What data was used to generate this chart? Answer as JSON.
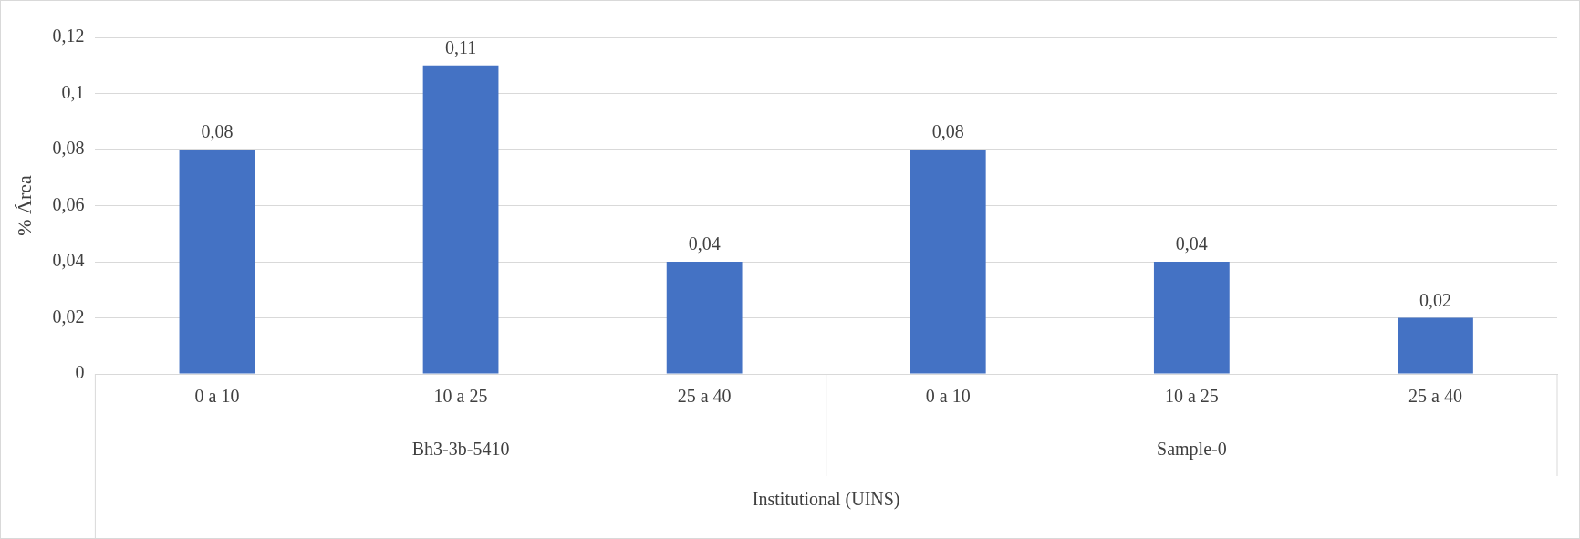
{
  "chart_data": {
    "type": "bar",
    "ylabel": "% Área",
    "xlabel": "Institutional (UINS)",
    "categories": [
      "0 a 10",
      "10 a 25",
      "25 a 40",
      "0 a 10",
      "10 a 25",
      "25 a 40"
    ],
    "values": [
      0.08,
      0.11,
      0.04,
      0.08,
      0.04,
      0.02
    ],
    "color": "#4472c4",
    "value_labels": [
      "0,08",
      "0,11",
      "0,04",
      "0,08",
      "0,04",
      "0,02"
    ],
    "ylim": [
      0,
      0.12
    ],
    "yticks": [
      0,
      {
        "value": 0.02,
        "label": "0,02"
      },
      {
        "value": 0.04,
        "label": "0,04"
      },
      {
        "value": 0.06,
        "label": "0,06"
      },
      {
        "value": 0.08,
        "label": "0,08"
      },
      {
        "value": 0.1,
        "label": "0,1"
      },
      {
        "value": 0.12,
        "label": "0,12"
      }
    ],
    "grid": "y",
    "annotations": [
      "Bh3-3b-5410",
      "Sample-0"
    ]
  }
}
